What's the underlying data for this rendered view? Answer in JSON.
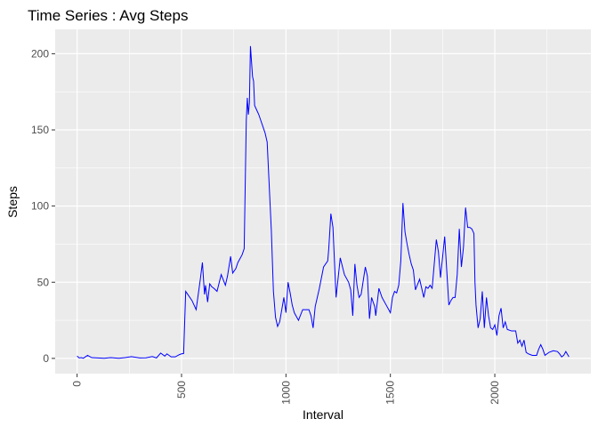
{
  "chart_data": {
    "type": "line",
    "title": "Time Series : Avg Steps",
    "xlabel": "Interval",
    "ylabel": "Steps",
    "xlim": [
      -105,
      2460
    ],
    "ylim": [
      -10,
      216
    ],
    "x_ticks": [
      0,
      500,
      1000,
      1500,
      2000
    ],
    "x_tick_labels": [
      "0",
      "500",
      "1000",
      "1500",
      "2000"
    ],
    "y_ticks": [
      0,
      50,
      100,
      150,
      200
    ],
    "y_tick_labels": [
      "0",
      "50",
      "100",
      "150",
      "200"
    ],
    "grid": true,
    "panel_background": "#ebebeb",
    "grid_color": "#ffffff",
    "line_color": "#0000ff",
    "series": [
      {
        "x": [
          0,
          10,
          20,
          30,
          50,
          70,
          100,
          130,
          160,
          200,
          230,
          260,
          300,
          330,
          360,
          380,
          400,
          420,
          430,
          450,
          470,
          490,
          500,
          510,
          520,
          550,
          570,
          590,
          600,
          610,
          615,
          625,
          635,
          645,
          655,
          670,
          690,
          710,
          720,
          735,
          745,
          760,
          770,
          790,
          800,
          810,
          815,
          820,
          825,
          830,
          840,
          845,
          850,
          860,
          870,
          880,
          890,
          900,
          910,
          920,
          930,
          940,
          950,
          960,
          970,
          990,
          1000,
          1010,
          1020,
          1030,
          1040,
          1060,
          1080,
          1100,
          1110,
          1120,
          1130,
          1140,
          1150,
          1160,
          1180,
          1200,
          1205,
          1215,
          1225,
          1240,
          1260,
          1280,
          1300,
          1310,
          1320,
          1330,
          1340,
          1350,
          1360,
          1380,
          1390,
          1400,
          1410,
          1420,
          1425,
          1430,
          1445,
          1460,
          1480,
          1500,
          1510,
          1520,
          1530,
          1540,
          1545,
          1550,
          1560,
          1570,
          1580,
          1590,
          1600,
          1610,
          1620,
          1640,
          1660,
          1670,
          1680,
          1690,
          1700,
          1710,
          1720,
          1730,
          1740,
          1760,
          1780,
          1790,
          1800,
          1810,
          1820,
          1830,
          1840,
          1850,
          1860,
          1870,
          1880,
          1890,
          1900,
          1905,
          1910,
          1920,
          1930,
          1940,
          1950,
          1960,
          1970,
          1980,
          1990,
          2000,
          2010,
          2020,
          2030,
          2040,
          2050,
          2060,
          2080,
          2100,
          2110,
          2120,
          2130,
          2140,
          2150,
          2160,
          2170,
          2180,
          2200,
          2210,
          2220,
          2230,
          2240,
          2260,
          2280,
          2300,
          2310,
          2320,
          2330,
          2340,
          2355
        ],
        "y": [
          1.5,
          0.3,
          0.5,
          0.1,
          2,
          0.5,
          0.3,
          0.1,
          0.5,
          0.1,
          0.5,
          1.2,
          0.3,
          0.4,
          1.2,
          0.3,
          3.5,
          1.5,
          3,
          1,
          1,
          2.5,
          3,
          3.2,
          44,
          38,
          32,
          52,
          63,
          42,
          48,
          37,
          49,
          47,
          46,
          44,
          55,
          48,
          54,
          67,
          56,
          59,
          63,
          68,
          72,
          156,
          171,
          160,
          168,
          205,
          185,
          182,
          166,
          163,
          160,
          156,
          152,
          148,
          142,
          113,
          84,
          44,
          27,
          21,
          24,
          40,
          30,
          50,
          43,
          35,
          30,
          25,
          32,
          32,
          32,
          28,
          20,
          34,
          40,
          46,
          60,
          64,
          72,
          95,
          86,
          40,
          66,
          55,
          50,
          45,
          28,
          62,
          48,
          40,
          42,
          60,
          54,
          26,
          40,
          36,
          34,
          28,
          46,
          40,
          35,
          30,
          40,
          44,
          43,
          48,
          56,
          64,
          102,
          83,
          75,
          68,
          62,
          58,
          45,
          52,
          40,
          47,
          46,
          48,
          46,
          62,
          78,
          70,
          53,
          80,
          35,
          38,
          40,
          40,
          55,
          85,
          60,
          73,
          99,
          86,
          86,
          85,
          82,
          50,
          35,
          20,
          26,
          44,
          20,
          40,
          28,
          20,
          19,
          22,
          15,
          28,
          33,
          20,
          24,
          19,
          18,
          18,
          10,
          12,
          8,
          12,
          4,
          3,
          2.5,
          2,
          2,
          6,
          9,
          6,
          2,
          4,
          5,
          4.5,
          3,
          1,
          2,
          4.5,
          1
        ]
      }
    ]
  }
}
